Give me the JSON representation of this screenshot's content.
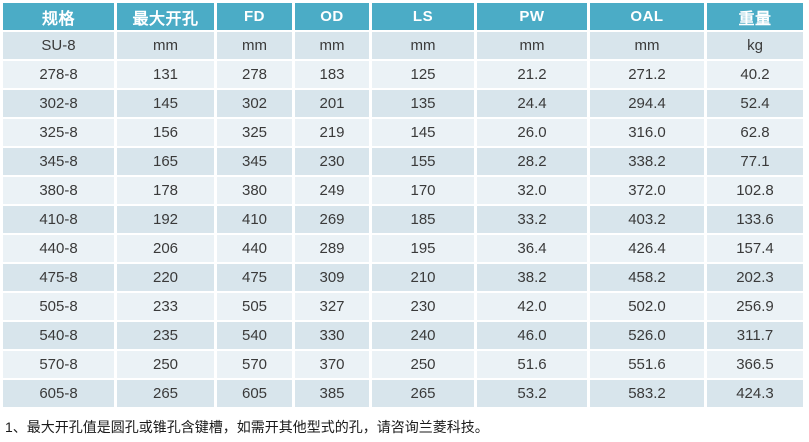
{
  "colors": {
    "header_bg": "#4BACC6",
    "row_dark": "#D8E5EC",
    "row_light": "#EBF2F6",
    "header_text": "#FFFFFF",
    "cell_text": "#3A3A3A",
    "note_text": "#1A1A1A"
  },
  "table": {
    "headers": [
      "规格",
      "最大开孔",
      "FD",
      "OD",
      "LS",
      "PW",
      "OAL",
      "重量"
    ],
    "units_row": [
      "SU-8",
      "mm",
      "mm",
      "mm",
      "mm",
      "mm",
      "mm",
      "kg"
    ],
    "rows": [
      [
        "278-8",
        "131",
        "278",
        "183",
        "125",
        "21.2",
        "271.2",
        "40.2"
      ],
      [
        "302-8",
        "145",
        "302",
        "201",
        "135",
        "24.4",
        "294.4",
        "52.4"
      ],
      [
        "325-8",
        "156",
        "325",
        "219",
        "145",
        "26.0",
        "316.0",
        "62.8"
      ],
      [
        "345-8",
        "165",
        "345",
        "230",
        "155",
        "28.2",
        "338.2",
        "77.1"
      ],
      [
        "380-8",
        "178",
        "380",
        "249",
        "170",
        "32.0",
        "372.0",
        "102.8"
      ],
      [
        "410-8",
        "192",
        "410",
        "269",
        "185",
        "33.2",
        "403.2",
        "133.6"
      ],
      [
        "440-8",
        "206",
        "440",
        "289",
        "195",
        "36.4",
        "426.4",
        "157.4"
      ],
      [
        "475-8",
        "220",
        "475",
        "309",
        "210",
        "38.2",
        "458.2",
        "202.3"
      ],
      [
        "505-8",
        "233",
        "505",
        "327",
        "230",
        "42.0",
        "502.0",
        "256.9"
      ],
      [
        "540-8",
        "235",
        "540",
        "330",
        "240",
        "46.0",
        "526.0",
        "311.7"
      ],
      [
        "570-8",
        "250",
        "570",
        "370",
        "250",
        "51.6",
        "551.6",
        "366.5"
      ],
      [
        "605-8",
        "265",
        "605",
        "385",
        "265",
        "53.2",
        "583.2",
        "424.3"
      ]
    ]
  },
  "note": "1、最大开孔值是圆孔或锥孔含键槽，如需开其他型式的孔，请咨询兰菱科技。"
}
